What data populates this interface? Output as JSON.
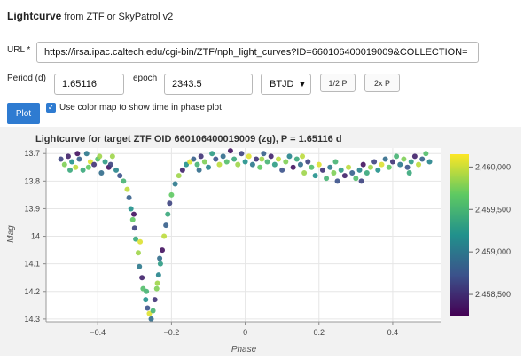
{
  "header": {
    "title": "Lightcurve",
    "subtitle": " from ZTF or SkyPatrol v2"
  },
  "form": {
    "url_label": "URL",
    "url_required_mark": "*",
    "url_value": "https://irsa.ipac.caltech.edu/cgi-bin/ZTF/nph_light_curves?ID=660106400019009&COLLECTION=",
    "period_label": "Period (d)",
    "period_value": "1.65116",
    "epoch_label": "epoch",
    "epoch_value": "2343.5",
    "time_system": "BTJD",
    "half_period_button": "1/2 P",
    "double_period_button": "2x P",
    "plot_button": "Plot",
    "colormap_checked": true,
    "colormap_label": "Use color map to show time in phase plot"
  },
  "chart_data": {
    "type": "scatter",
    "title": "Lightcurve for target ZTF OID 660106400019009 (zg), P = 1.65116 d",
    "xlabel": "Phase",
    "ylabel": "Mag",
    "xlim": [
      -0.54,
      0.53
    ],
    "ylim": [
      14.3,
      13.67
    ],
    "y_inverted": true,
    "x_ticks": [
      -0.4,
      -0.2,
      0,
      0.2,
      0.4
    ],
    "x_tick_labels": [
      "−0.4",
      "−0.2",
      "0",
      "0.2",
      "0.4"
    ],
    "y_ticks": [
      13.7,
      13.8,
      13.9,
      14,
      14.1,
      14.2,
      14.3
    ],
    "y_tick_labels": [
      "13.7",
      "13.8",
      "13.9",
      "14",
      "14.1",
      "14.2",
      "14.3"
    ],
    "grid": true,
    "colorbar": {
      "colormap": "viridis",
      "range": [
        2458250,
        2460150
      ],
      "ticks": [
        2458500,
        2459000,
        2459500,
        2460000
      ],
      "tick_labels": [
        "2,458,500",
        "2,459,000",
        "2,459,500",
        "2,460,000"
      ]
    },
    "points": [
      [
        -0.5,
        13.72,
        0.2
      ],
      [
        -0.49,
        13.74,
        0.8
      ],
      [
        -0.48,
        13.71,
        0.1
      ],
      [
        -0.47,
        13.73,
        0.5
      ],
      [
        -0.46,
        13.75,
        0.9
      ],
      [
        -0.45,
        13.72,
        0.3
      ],
      [
        -0.44,
        13.76,
        0.6
      ],
      [
        -0.43,
        13.7,
        0.4
      ],
      [
        -0.42,
        13.73,
        0.95
      ],
      [
        -0.41,
        13.74,
        0.15
      ],
      [
        -0.4,
        13.72,
        0.7
      ],
      [
        -0.39,
        13.77,
        0.35
      ],
      [
        -0.38,
        13.73,
        0.55
      ],
      [
        -0.37,
        13.75,
        0.05
      ],
      [
        -0.36,
        13.71,
        0.85
      ],
      [
        -0.35,
        13.76,
        0.45
      ],
      [
        -0.34,
        13.78,
        0.25
      ],
      [
        -0.33,
        13.8,
        0.65
      ],
      [
        -0.32,
        13.83,
        0.9
      ],
      [
        -0.315,
        13.86,
        0.3
      ],
      [
        -0.31,
        13.9,
        0.5
      ],
      [
        -0.305,
        13.94,
        0.75
      ],
      [
        -0.3,
        13.97,
        0.2
      ],
      [
        -0.297,
        14.01,
        0.6
      ],
      [
        -0.29,
        14.06,
        0.85
      ],
      [
        -0.287,
        14.11,
        0.4
      ],
      [
        -0.28,
        14.15,
        0.1
      ],
      [
        -0.277,
        14.19,
        0.7
      ],
      [
        -0.27,
        14.23,
        0.5
      ],
      [
        -0.265,
        14.26,
        0.25
      ],
      [
        -0.26,
        14.28,
        0.95
      ],
      [
        -0.255,
        14.3,
        0.35
      ],
      [
        -0.25,
        14.27,
        0.65
      ],
      [
        -0.245,
        14.23,
        0.15
      ],
      [
        -0.24,
        14.19,
        0.8
      ],
      [
        -0.235,
        14.14,
        0.45
      ],
      [
        -0.23,
        14.1,
        0.55
      ],
      [
        -0.225,
        14.05,
        0.05
      ],
      [
        -0.22,
        14.0,
        0.9
      ],
      [
        -0.215,
        13.96,
        0.3
      ],
      [
        -0.21,
        13.92,
        0.6
      ],
      [
        -0.205,
        13.88,
        0.2
      ],
      [
        -0.2,
        13.85,
        0.75
      ],
      [
        -0.19,
        13.81,
        0.4
      ],
      [
        -0.18,
        13.78,
        0.85
      ],
      [
        -0.17,
        13.76,
        0.1
      ],
      [
        -0.16,
        13.74,
        0.5
      ],
      [
        -0.15,
        13.73,
        0.95
      ],
      [
        -0.14,
        13.72,
        0.3
      ],
      [
        -0.13,
        13.74,
        0.65
      ],
      [
        -0.12,
        13.71,
        0.15
      ],
      [
        -0.11,
        13.73,
        0.8
      ],
      [
        -0.1,
        13.75,
        0.45
      ],
      [
        -0.09,
        13.7,
        0.55
      ],
      [
        -0.08,
        13.72,
        0.25
      ],
      [
        -0.07,
        13.74,
        0.9
      ],
      [
        -0.06,
        13.71,
        0.35
      ],
      [
        -0.05,
        13.73,
        0.7
      ],
      [
        -0.04,
        13.69,
        0.05
      ],
      [
        -0.03,
        13.72,
        0.6
      ],
      [
        -0.02,
        13.74,
        0.85
      ],
      [
        -0.01,
        13.7,
        0.2
      ],
      [
        0.0,
        13.73,
        0.5
      ],
      [
        0.01,
        13.71,
        0.95
      ],
      [
        0.02,
        13.74,
        0.4
      ],
      [
        0.03,
        13.72,
        0.15
      ],
      [
        0.04,
        13.75,
        0.75
      ],
      [
        0.05,
        13.7,
        0.3
      ],
      [
        0.06,
        13.73,
        0.65
      ],
      [
        0.07,
        13.71,
        0.1
      ],
      [
        0.08,
        13.74,
        0.55
      ],
      [
        0.09,
        13.72,
        0.9
      ],
      [
        0.1,
        13.76,
        0.25
      ],
      [
        0.11,
        13.73,
        0.8
      ],
      [
        0.12,
        13.71,
        0.45
      ],
      [
        0.13,
        13.75,
        0.05
      ],
      [
        0.14,
        13.72,
        0.6
      ],
      [
        0.15,
        13.74,
        0.35
      ],
      [
        0.16,
        13.77,
        0.85
      ],
      [
        0.17,
        13.73,
        0.2
      ],
      [
        0.18,
        13.75,
        0.7
      ],
      [
        0.19,
        13.78,
        0.5
      ],
      [
        0.2,
        13.74,
        0.95
      ],
      [
        0.21,
        13.76,
        0.15
      ],
      [
        0.22,
        13.79,
        0.65
      ],
      [
        0.23,
        13.75,
        0.4
      ],
      [
        0.24,
        13.77,
        0.8
      ],
      [
        0.25,
        13.8,
        0.25
      ],
      [
        0.26,
        13.76,
        0.55
      ],
      [
        0.27,
        13.78,
        0.1
      ],
      [
        0.28,
        13.75,
        0.9
      ],
      [
        0.29,
        13.77,
        0.3
      ],
      [
        0.3,
        13.79,
        0.7
      ],
      [
        0.31,
        13.76,
        0.45
      ],
      [
        0.32,
        13.74,
        0.05
      ],
      [
        0.33,
        13.77,
        0.6
      ],
      [
        0.34,
        13.75,
        0.85
      ],
      [
        0.35,
        13.73,
        0.2
      ],
      [
        0.36,
        13.76,
        0.5
      ],
      [
        0.37,
        13.74,
        0.95
      ],
      [
        0.38,
        13.72,
        0.35
      ],
      [
        0.39,
        13.75,
        0.75
      ],
      [
        0.4,
        13.73,
        0.15
      ],
      [
        0.41,
        13.71,
        0.65
      ],
      [
        0.42,
        13.74,
        0.4
      ],
      [
        0.43,
        13.72,
        0.8
      ],
      [
        0.44,
        13.75,
        0.25
      ],
      [
        0.45,
        13.73,
        0.55
      ],
      [
        0.46,
        13.71,
        0.1
      ],
      [
        0.47,
        13.74,
        0.9
      ],
      [
        0.48,
        13.72,
        0.3
      ],
      [
        0.49,
        13.7,
        0.7
      ],
      [
        0.5,
        13.73,
        0.45
      ],
      [
        -0.475,
        13.76,
        0.6
      ],
      [
        -0.455,
        13.7,
        0.05
      ],
      [
        -0.425,
        13.75,
        0.75
      ],
      [
        -0.395,
        13.71,
        0.85
      ],
      [
        -0.365,
        13.74,
        0.2
      ],
      [
        -0.125,
        13.76,
        0.35
      ],
      [
        0.045,
        13.72,
        0.85
      ],
      [
        0.155,
        13.71,
        0.9
      ],
      [
        0.245,
        13.73,
        0.65
      ],
      [
        0.315,
        13.8,
        0.2
      ],
      [
        0.445,
        13.77,
        0.6
      ],
      [
        -0.285,
        14.02,
        0.95
      ],
      [
        -0.238,
        14.17,
        0.85
      ],
      [
        -0.232,
        14.08,
        0.35
      ],
      [
        -0.268,
        14.2,
        0.65
      ],
      [
        -0.302,
        13.92,
        0.05
      ]
    ]
  }
}
